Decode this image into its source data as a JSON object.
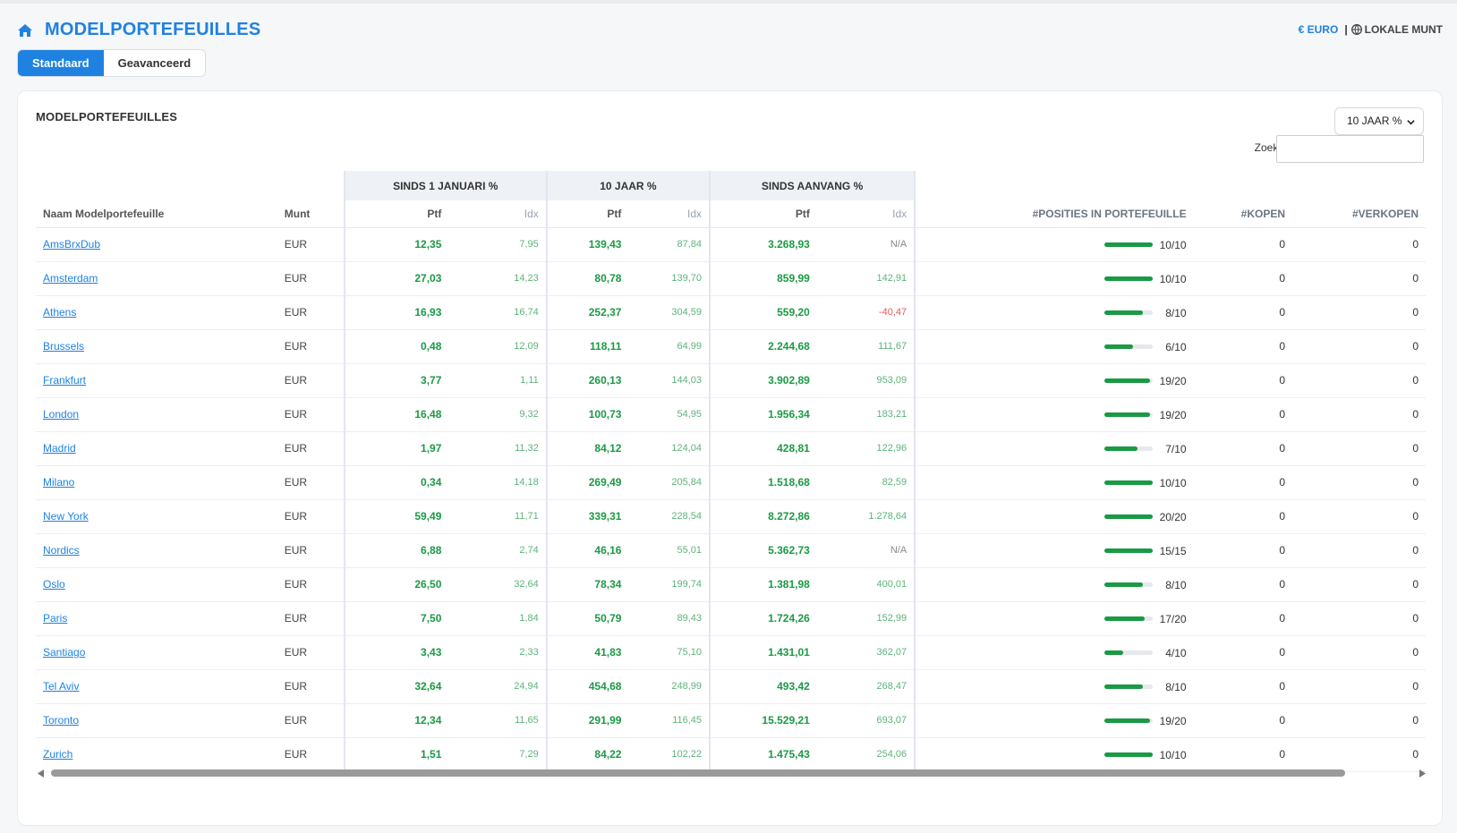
{
  "header": {
    "title": "MODELPORTEFEUILLES",
    "currency_euro": "€ EURO",
    "currency_sep": "|",
    "currency_local": "LOKALE MUNT"
  },
  "tabs": [
    "Standaard",
    "Geavanceerd"
  ],
  "card": {
    "title": "MODELPORTEFEUILLES",
    "period_select": "10 JAAR %",
    "search_label": "Zoeken:",
    "search_value": ""
  },
  "table": {
    "groups": [
      "SINDS 1 JANUARI %",
      "10 JAAR %",
      "SINDS AANVANG %"
    ],
    "columns": {
      "name": "Naam Modelportefeuille",
      "munt": "Munt",
      "ptf": "Ptf",
      "idx": "Idx",
      "posities": "#POSITIES IN PORTEFEUILLE",
      "kopen": "#KOPEN",
      "verkopen": "#VERKOPEN"
    },
    "rows": [
      {
        "name": "AmsBrxDub",
        "munt": "EUR",
        "ytd_ptf": "12,35",
        "ytd_idx": "7,95",
        "y10_ptf": "139,43",
        "y10_idx": "87,84",
        "inc_ptf": "3.268,93",
        "inc_idx": "N/A",
        "pos": "10/10",
        "pos_frac": 1.0,
        "kopen": "0",
        "verkopen": "0"
      },
      {
        "name": "Amsterdam",
        "munt": "EUR",
        "ytd_ptf": "27,03",
        "ytd_idx": "14,23",
        "y10_ptf": "80,78",
        "y10_idx": "139,70",
        "inc_ptf": "859,99",
        "inc_idx": "142,91",
        "pos": "10/10",
        "pos_frac": 1.0,
        "kopen": "0",
        "verkopen": "0"
      },
      {
        "name": "Athens",
        "munt": "EUR",
        "ytd_ptf": "16,93",
        "ytd_idx": "16,74",
        "y10_ptf": "252,37",
        "y10_idx": "304,59",
        "inc_ptf": "559,20",
        "inc_idx": "-40,47",
        "pos": "8/10",
        "pos_frac": 0.8,
        "kopen": "0",
        "verkopen": "0"
      },
      {
        "name": "Brussels",
        "munt": "EUR",
        "ytd_ptf": "0,48",
        "ytd_idx": "12,09",
        "y10_ptf": "118,11",
        "y10_idx": "64,99",
        "inc_ptf": "2.244,68",
        "inc_idx": "111,67",
        "pos": "6/10",
        "pos_frac": 0.6,
        "kopen": "0",
        "verkopen": "0"
      },
      {
        "name": "Frankfurt",
        "munt": "EUR",
        "ytd_ptf": "3,77",
        "ytd_idx": "1,11",
        "y10_ptf": "260,13",
        "y10_idx": "144,03",
        "inc_ptf": "3.902,89",
        "inc_idx": "953,09",
        "pos": "19/20",
        "pos_frac": 0.95,
        "kopen": "0",
        "verkopen": "0"
      },
      {
        "name": "London",
        "munt": "EUR",
        "ytd_ptf": "16,48",
        "ytd_idx": "9,32",
        "y10_ptf": "100,73",
        "y10_idx": "54,95",
        "inc_ptf": "1.956,34",
        "inc_idx": "183,21",
        "pos": "19/20",
        "pos_frac": 0.95,
        "kopen": "0",
        "verkopen": "0"
      },
      {
        "name": "Madrid",
        "munt": "EUR",
        "ytd_ptf": "1,97",
        "ytd_idx": "11,32",
        "y10_ptf": "84,12",
        "y10_idx": "124,04",
        "inc_ptf": "428,81",
        "inc_idx": "122,96",
        "pos": "7/10",
        "pos_frac": 0.7,
        "kopen": "0",
        "verkopen": "0"
      },
      {
        "name": "Milano",
        "munt": "EUR",
        "ytd_ptf": "0,34",
        "ytd_idx": "14,18",
        "y10_ptf": "269,49",
        "y10_idx": "205,84",
        "inc_ptf": "1.518,68",
        "inc_idx": "82,59",
        "pos": "10/10",
        "pos_frac": 1.0,
        "kopen": "0",
        "verkopen": "0"
      },
      {
        "name": "New York",
        "munt": "EUR",
        "ytd_ptf": "59,49",
        "ytd_idx": "11,71",
        "y10_ptf": "339,31",
        "y10_idx": "228,54",
        "inc_ptf": "8.272,86",
        "inc_idx": "1.278,64",
        "pos": "20/20",
        "pos_frac": 1.0,
        "kopen": "0",
        "verkopen": "0"
      },
      {
        "name": "Nordics",
        "munt": "EUR",
        "ytd_ptf": "6,88",
        "ytd_idx": "2,74",
        "y10_ptf": "46,16",
        "y10_idx": "55,01",
        "inc_ptf": "5.362,73",
        "inc_idx": "N/A",
        "pos": "15/15",
        "pos_frac": 1.0,
        "kopen": "0",
        "verkopen": "0"
      },
      {
        "name": "Oslo",
        "munt": "EUR",
        "ytd_ptf": "26,50",
        "ytd_idx": "32,64",
        "y10_ptf": "78,34",
        "y10_idx": "199,74",
        "inc_ptf": "1.381,98",
        "inc_idx": "400,01",
        "pos": "8/10",
        "pos_frac": 0.8,
        "kopen": "0",
        "verkopen": "0"
      },
      {
        "name": "Paris",
        "munt": "EUR",
        "ytd_ptf": "7,50",
        "ytd_idx": "1,84",
        "y10_ptf": "50,79",
        "y10_idx": "89,43",
        "inc_ptf": "1.724,26",
        "inc_idx": "152,99",
        "pos": "17/20",
        "pos_frac": 0.85,
        "kopen": "0",
        "verkopen": "0"
      },
      {
        "name": "Santiago",
        "munt": "EUR",
        "ytd_ptf": "3,43",
        "ytd_idx": "2,33",
        "y10_ptf": "41,83",
        "y10_idx": "75,10",
        "inc_ptf": "1.431,01",
        "inc_idx": "362,07",
        "pos": "4/10",
        "pos_frac": 0.4,
        "kopen": "0",
        "verkopen": "0"
      },
      {
        "name": "Tel Aviv",
        "munt": "EUR",
        "ytd_ptf": "32,64",
        "ytd_idx": "24,94",
        "y10_ptf": "454,68",
        "y10_idx": "248,99",
        "inc_ptf": "493,42",
        "inc_idx": "268,47",
        "pos": "8/10",
        "pos_frac": 0.8,
        "kopen": "0",
        "verkopen": "0"
      },
      {
        "name": "Toronto",
        "munt": "EUR",
        "ytd_ptf": "12,34",
        "ytd_idx": "11,65",
        "y10_ptf": "291,99",
        "y10_idx": "116,45",
        "inc_ptf": "15.529,21",
        "inc_idx": "693,07",
        "pos": "19/20",
        "pos_frac": 0.95,
        "kopen": "0",
        "verkopen": "0"
      },
      {
        "name": "Zurich",
        "munt": "EUR",
        "ytd_ptf": "1,51",
        "ytd_idx": "7,29",
        "y10_ptf": "84,22",
        "y10_idx": "102,22",
        "inc_ptf": "1.475,43",
        "inc_idx": "254,06",
        "pos": "10/10",
        "pos_frac": 1.0,
        "kopen": "0",
        "verkopen": "0"
      }
    ]
  },
  "colors": {
    "accent": "#1f82e0",
    "positive": "#1a9a44",
    "index_positive": "#5db37a",
    "negative": "#e05a5a"
  },
  "icons": {
    "home": "home-icon",
    "globe": "globe-icon"
  }
}
